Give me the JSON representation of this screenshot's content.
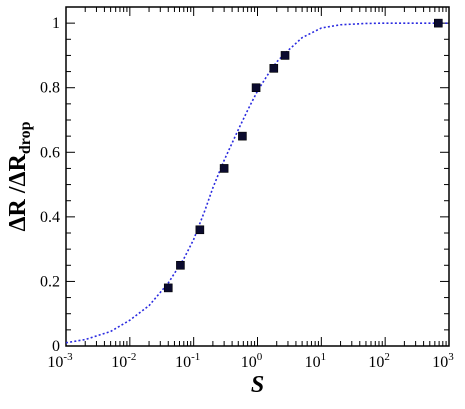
{
  "chart_data": {
    "type": "scatter",
    "x_scale": "log",
    "xlim": [
      0.001,
      1000
    ],
    "ylim": [
      0,
      1.05
    ],
    "xlabel": "S",
    "ylabel": {
      "main": "ΔR /ΔR",
      "subscript": "drop"
    },
    "x_ticks": [
      {
        "value": 0.001,
        "base": "10",
        "exp": "-3"
      },
      {
        "value": 0.01,
        "base": "10",
        "exp": "-2"
      },
      {
        "value": 0.1,
        "base": "10",
        "exp": "-1"
      },
      {
        "value": 1,
        "base": "10",
        "exp": "0"
      },
      {
        "value": 10,
        "base": "10",
        "exp": "1"
      },
      {
        "value": 100,
        "base": "10",
        "exp": "2"
      },
      {
        "value": 1000,
        "base": "10",
        "exp": "3"
      }
    ],
    "y_ticks": [
      {
        "value": 0,
        "label": "0"
      },
      {
        "value": 0.2,
        "label": "0.2"
      },
      {
        "value": 0.4,
        "label": "0.4"
      },
      {
        "value": 0.6,
        "label": "0.6"
      },
      {
        "value": 0.8,
        "label": "0.8"
      },
      {
        "value": 1,
        "label": "1"
      }
    ],
    "series": [
      {
        "kind": "markers",
        "marker": "square",
        "color": "#0b0b2e",
        "points": [
          {
            "x": 0.04,
            "y": 0.18
          },
          {
            "x": 0.062,
            "y": 0.25
          },
          {
            "x": 0.125,
            "y": 0.36
          },
          {
            "x": 0.3,
            "y": 0.55
          },
          {
            "x": 0.58,
            "y": 0.65
          },
          {
            "x": 0.95,
            "y": 0.8
          },
          {
            "x": 1.8,
            "y": 0.86
          },
          {
            "x": 2.7,
            "y": 0.9
          },
          {
            "x": 680,
            "y": 1.0
          }
        ]
      },
      {
        "kind": "fit-curve",
        "style": "dotted",
        "color": "#2a2ae0",
        "points": [
          {
            "x": 0.001,
            "y": 0.01
          },
          {
            "x": 0.002,
            "y": 0.02
          },
          {
            "x": 0.005,
            "y": 0.045
          },
          {
            "x": 0.01,
            "y": 0.08
          },
          {
            "x": 0.02,
            "y": 0.125
          },
          {
            "x": 0.04,
            "y": 0.195
          },
          {
            "x": 0.07,
            "y": 0.27
          },
          {
            "x": 0.1,
            "y": 0.33
          },
          {
            "x": 0.15,
            "y": 0.42
          },
          {
            "x": 0.2,
            "y": 0.49
          },
          {
            "x": 0.3,
            "y": 0.575
          },
          {
            "x": 0.5,
            "y": 0.67
          },
          {
            "x": 0.7,
            "y": 0.73
          },
          {
            "x": 1,
            "y": 0.79
          },
          {
            "x": 1.5,
            "y": 0.845
          },
          {
            "x": 2,
            "y": 0.88
          },
          {
            "x": 3,
            "y": 0.915
          },
          {
            "x": 5,
            "y": 0.955
          },
          {
            "x": 10,
            "y": 0.985
          },
          {
            "x": 20,
            "y": 0.995
          },
          {
            "x": 50,
            "y": 0.999
          },
          {
            "x": 100,
            "y": 1.0
          },
          {
            "x": 1000,
            "y": 1.0
          }
        ]
      }
    ]
  }
}
